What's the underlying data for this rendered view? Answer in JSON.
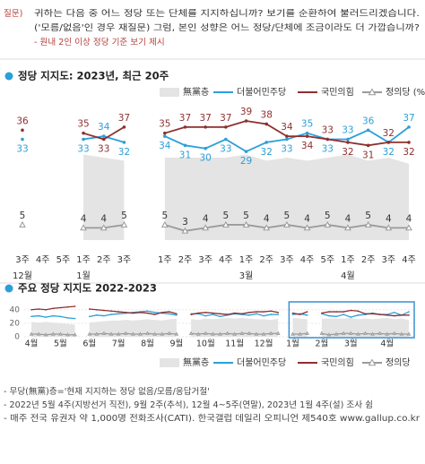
{
  "question": {
    "label": "질문)",
    "lines": [
      "귀하는 다음 중 어느 정당 또는 단체를 지지하십니까? 보기를 순환하여 불러드리겠습니다.",
      "('모름/없음'인 경우 재질문) 그럼, 본인 성향은 어느 정당/단체에 조금이라도 더 가깝습니까?"
    ],
    "note": "- 원내 2인 이상 정당 기준 보기 제시"
  },
  "chart_data": [
    {
      "type": "line",
      "title": "정당 지지도: 2023년, 최근 20주",
      "data_labels": true,
      "categories": [
        "3주",
        "4주",
        "5주",
        "1주",
        "2주",
        "3주",
        null,
        "1주",
        "2주",
        "3주",
        "4주",
        "1주",
        "2주",
        "3주",
        "4주",
        "5주",
        "1주",
        "2주",
        "3주",
        "4주"
      ],
      "months": [
        "12월",
        null,
        null,
        "1월",
        null,
        null,
        null,
        null,
        null,
        null,
        null,
        "3월",
        null,
        null,
        null,
        null,
        "4월",
        null,
        null,
        null
      ],
      "ylim": [
        0,
        44
      ],
      "series": [
        {
          "name": "無黨층",
          "kind": "area",
          "color": "#e4e4e4",
          "values": [
            null,
            null,
            null,
            28,
            27,
            26,
            null,
            27,
            27,
            27,
            27,
            28,
            26,
            27,
            26,
            27,
            28,
            26,
            27,
            25
          ]
        },
        {
          "name": "더불어민주당",
          "kind": "line",
          "color": "#2b9fd9",
          "values": [
            33,
            null,
            null,
            33,
            34,
            32,
            null,
            34,
            31,
            30,
            33,
            29,
            32,
            33,
            35,
            33,
            33,
            36,
            32,
            37
          ]
        },
        {
          "name": "국민의힘",
          "kind": "line",
          "color": "#8e2f2f",
          "values": [
            36,
            null,
            null,
            35,
            33,
            37,
            null,
            35,
            37,
            37,
            37,
            39,
            38,
            34,
            34,
            33,
            32,
            31,
            32,
            32
          ]
        },
        {
          "name": "정의당 (%)",
          "kind": "line",
          "marker": "triangle",
          "color": "#9a9a9a",
          "values": [
            5,
            null,
            null,
            4,
            4,
            5,
            null,
            5,
            3,
            4,
            5,
            5,
            4,
            5,
            4,
            5,
            4,
            5,
            4,
            4
          ]
        }
      ]
    },
    {
      "type": "line",
      "title": "주요 정당 지지도 2022-2023",
      "data_labels": false,
      "categories": [
        "4월",
        null,
        null,
        null,
        "5월",
        null,
        null,
        null,
        "6월",
        null,
        null,
        null,
        "7월",
        null,
        null,
        null,
        "8월",
        null,
        null,
        null,
        "9월",
        null,
        null,
        null,
        "10월",
        null,
        null,
        null,
        "11월",
        null,
        null,
        null,
        "12월",
        null,
        null,
        null,
        "1월",
        null,
        null,
        null,
        "2월",
        null,
        null,
        null,
        "3월",
        null,
        null,
        null,
        null,
        "4월",
        null,
        null,
        null
      ],
      "ylim": [
        0,
        45
      ],
      "yticks": [
        0,
        20,
        40
      ],
      "grid": true,
      "series": [
        {
          "name": "無黨층",
          "kind": "area",
          "color": "#e4e4e4",
          "values": [
            22,
            21,
            22,
            21,
            20,
            19,
            18,
            null,
            21,
            22,
            23,
            24,
            24,
            25,
            24,
            25,
            26,
            25,
            24,
            26,
            27,
            null,
            26,
            25,
            27,
            26,
            27,
            28,
            27,
            28,
            27,
            26,
            26,
            25,
            27,
            null,
            28,
            27,
            26,
            null,
            27,
            27,
            27,
            27,
            28,
            26,
            27,
            26,
            27,
            28,
            26,
            27,
            25
          ]
        },
        {
          "name": "더불어민주당",
          "kind": "line",
          "color": "#2b9fd9",
          "values": [
            30,
            31,
            29,
            31,
            30,
            28,
            27,
            null,
            30,
            32,
            31,
            33,
            34,
            35,
            36,
            37,
            38,
            36,
            35,
            34,
            32,
            null,
            34,
            34,
            31,
            33,
            30,
            32,
            34,
            33,
            32,
            34,
            31,
            33,
            33,
            null,
            33,
            34,
            32,
            null,
            34,
            31,
            30,
            33,
            29,
            32,
            33,
            35,
            33,
            33,
            36,
            32,
            37
          ]
        },
        {
          "name": "국민의힘",
          "kind": "line",
          "color": "#8e2f2f",
          "values": [
            40,
            41,
            40,
            42,
            43,
            44,
            45,
            null,
            41,
            40,
            39,
            38,
            37,
            36,
            35,
            36,
            35,
            33,
            36,
            37,
            34,
            null,
            33,
            35,
            36,
            35,
            34,
            33,
            35,
            34,
            36,
            37,
            37,
            38,
            36,
            null,
            35,
            33,
            37,
            null,
            35,
            37,
            37,
            37,
            39,
            38,
            34,
            34,
            33,
            32,
            31,
            32,
            32
          ]
        },
        {
          "name": "정의당",
          "kind": "line",
          "marker": "triangle",
          "color": "#9a9a9a",
          "values": [
            4,
            4,
            3,
            4,
            4,
            3,
            3,
            null,
            4,
            4,
            5,
            4,
            4,
            5,
            4,
            4,
            5,
            4,
            4,
            5,
            4,
            null,
            5,
            4,
            5,
            4,
            4,
            5,
            4,
            5,
            5,
            4,
            4,
            5,
            5,
            null,
            4,
            4,
            5,
            null,
            5,
            3,
            4,
            5,
            5,
            4,
            5,
            4,
            5,
            4,
            5,
            4,
            4
          ]
        }
      ]
    }
  ],
  "footnotes": [
    "- 무당(無黨)층='현재 지지하는 정당 없음/모름/응답거절'",
    "- 2022년 5월 4주(지방선거 직전), 9월 2주(추석), 12월 4~5주(연말), 2023년 1월 4주(설) 조사 쉼",
    "- 매주 전국 유권자 약 1,000명 전화조사(CATI). 한국갤럽 데일리 오피니언 제540호 www.gallup.co.kr"
  ]
}
